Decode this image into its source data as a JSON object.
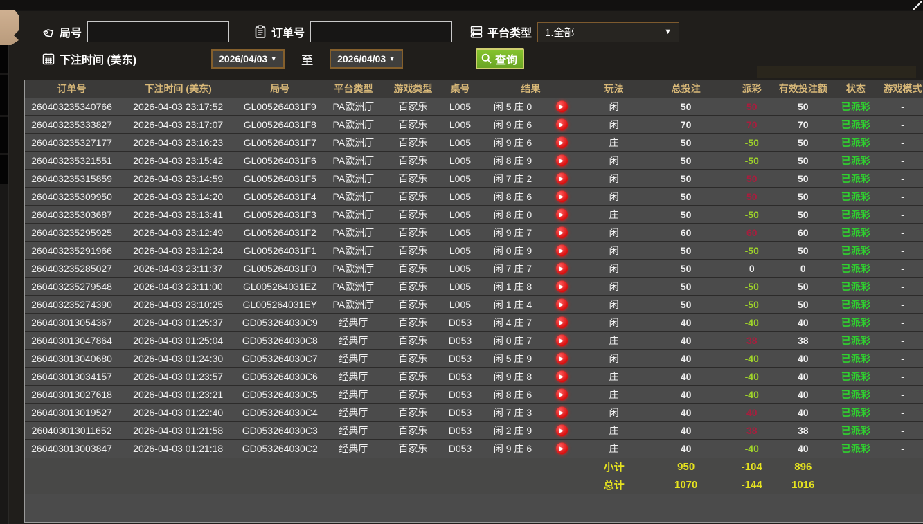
{
  "filters": {
    "round_label": "局号",
    "order_label": "订单号",
    "platform_label": "平台类型",
    "platform_value": "1.全部",
    "bet_time_label": "下注时间 (美东)",
    "date_from": "2026/04/03",
    "date_to": "2026/04/03",
    "to_label": "至",
    "query_label": "查询"
  },
  "table": {
    "headers": [
      "订单号",
      "下注时间 (美东)",
      "局号",
      "平台类型",
      "游戏类型",
      "桌号",
      "结果",
      "玩法",
      "总投注",
      "派彩",
      "有效投注额",
      "状态",
      "游戏模式"
    ],
    "rows": [
      {
        "order": "260403235340766",
        "time": "2026-04-03 23:17:52",
        "round": "GL005264031F9",
        "platform": "PA欧洲厅",
        "game": "百家乐",
        "table_no": "L005",
        "result": "闲 5 庄 0",
        "play": "闲",
        "bet": "50",
        "payout": "50",
        "payout_type": "win",
        "valid": "50",
        "status": "已派彩",
        "mode": "-"
      },
      {
        "order": "260403235333827",
        "time": "2026-04-03 23:17:07",
        "round": "GL005264031F8",
        "platform": "PA欧洲厅",
        "game": "百家乐",
        "table_no": "L005",
        "result": "闲 9 庄 6",
        "play": "闲",
        "bet": "70",
        "payout": "70",
        "payout_type": "win",
        "valid": "70",
        "status": "已派彩",
        "mode": "-"
      },
      {
        "order": "260403235327177",
        "time": "2026-04-03 23:16:23",
        "round": "GL005264031F7",
        "platform": "PA欧洲厅",
        "game": "百家乐",
        "table_no": "L005",
        "result": "闲 9 庄 6",
        "play": "庄",
        "bet": "50",
        "payout": "-50",
        "payout_type": "loss",
        "valid": "50",
        "status": "已派彩",
        "mode": "-"
      },
      {
        "order": "260403235321551",
        "time": "2026-04-03 23:15:42",
        "round": "GL005264031F6",
        "platform": "PA欧洲厅",
        "game": "百家乐",
        "table_no": "L005",
        "result": "闲 8 庄 9",
        "play": "闲",
        "bet": "50",
        "payout": "-50",
        "payout_type": "loss",
        "valid": "50",
        "status": "已派彩",
        "mode": "-"
      },
      {
        "order": "260403235315859",
        "time": "2026-04-03 23:14:59",
        "round": "GL005264031F5",
        "platform": "PA欧洲厅",
        "game": "百家乐",
        "table_no": "L005",
        "result": "闲 7 庄 2",
        "play": "闲",
        "bet": "50",
        "payout": "50",
        "payout_type": "win",
        "valid": "50",
        "status": "已派彩",
        "mode": "-"
      },
      {
        "order": "260403235309950",
        "time": "2026-04-03 23:14:20",
        "round": "GL005264031F4",
        "platform": "PA欧洲厅",
        "game": "百家乐",
        "table_no": "L005",
        "result": "闲 8 庄 6",
        "play": "闲",
        "bet": "50",
        "payout": "50",
        "payout_type": "win",
        "valid": "50",
        "status": "已派彩",
        "mode": "-"
      },
      {
        "order": "260403235303687",
        "time": "2026-04-03 23:13:41",
        "round": "GL005264031F3",
        "platform": "PA欧洲厅",
        "game": "百家乐",
        "table_no": "L005",
        "result": "闲 8 庄 0",
        "play": "庄",
        "bet": "50",
        "payout": "-50",
        "payout_type": "loss",
        "valid": "50",
        "status": "已派彩",
        "mode": "-"
      },
      {
        "order": "260403235295925",
        "time": "2026-04-03 23:12:49",
        "round": "GL005264031F2",
        "platform": "PA欧洲厅",
        "game": "百家乐",
        "table_no": "L005",
        "result": "闲 9 庄 7",
        "play": "闲",
        "bet": "60",
        "payout": "60",
        "payout_type": "win",
        "valid": "60",
        "status": "已派彩",
        "mode": "-"
      },
      {
        "order": "260403235291966",
        "time": "2026-04-03 23:12:24",
        "round": "GL005264031F1",
        "platform": "PA欧洲厅",
        "game": "百家乐",
        "table_no": "L005",
        "result": "闲 0 庄 9",
        "play": "闲",
        "bet": "50",
        "payout": "-50",
        "payout_type": "loss",
        "valid": "50",
        "status": "已派彩",
        "mode": "-"
      },
      {
        "order": "260403235285027",
        "time": "2026-04-03 23:11:37",
        "round": "GL005264031F0",
        "platform": "PA欧洲厅",
        "game": "百家乐",
        "table_no": "L005",
        "result": "闲 7 庄 7",
        "play": "闲",
        "bet": "50",
        "payout": "0",
        "payout_type": "zero",
        "valid": "0",
        "status": "已派彩",
        "mode": "-"
      },
      {
        "order": "260403235279548",
        "time": "2026-04-03 23:11:00",
        "round": "GL005264031EZ",
        "platform": "PA欧洲厅",
        "game": "百家乐",
        "table_no": "L005",
        "result": "闲 1 庄 8",
        "play": "闲",
        "bet": "50",
        "payout": "-50",
        "payout_type": "loss",
        "valid": "50",
        "status": "已派彩",
        "mode": "-"
      },
      {
        "order": "260403235274390",
        "time": "2026-04-03 23:10:25",
        "round": "GL005264031EY",
        "platform": "PA欧洲厅",
        "game": "百家乐",
        "table_no": "L005",
        "result": "闲 1 庄 4",
        "play": "闲",
        "bet": "50",
        "payout": "-50",
        "payout_type": "loss",
        "valid": "50",
        "status": "已派彩",
        "mode": "-"
      },
      {
        "order": "260403013054367",
        "time": "2026-04-03 01:25:37",
        "round": "GD053264030C9",
        "platform": "经典厅",
        "game": "百家乐",
        "table_no": "D053",
        "result": "闲 4 庄 7",
        "play": "闲",
        "bet": "40",
        "payout": "-40",
        "payout_type": "loss",
        "valid": "40",
        "status": "已派彩",
        "mode": "-"
      },
      {
        "order": "260403013047864",
        "time": "2026-04-03 01:25:04",
        "round": "GD053264030C8",
        "platform": "经典厅",
        "game": "百家乐",
        "table_no": "D053",
        "result": "闲 0 庄 7",
        "play": "庄",
        "bet": "40",
        "payout": "38",
        "payout_type": "win",
        "valid": "38",
        "status": "已派彩",
        "mode": "-"
      },
      {
        "order": "260403013040680",
        "time": "2026-04-03 01:24:30",
        "round": "GD053264030C7",
        "platform": "经典厅",
        "game": "百家乐",
        "table_no": "D053",
        "result": "闲 5 庄 9",
        "play": "闲",
        "bet": "40",
        "payout": "-40",
        "payout_type": "loss",
        "valid": "40",
        "status": "已派彩",
        "mode": "-"
      },
      {
        "order": "260403013034157",
        "time": "2026-04-03 01:23:57",
        "round": "GD053264030C6",
        "platform": "经典厅",
        "game": "百家乐",
        "table_no": "D053",
        "result": "闲 9 庄 8",
        "play": "庄",
        "bet": "40",
        "payout": "-40",
        "payout_type": "loss",
        "valid": "40",
        "status": "已派彩",
        "mode": "-"
      },
      {
        "order": "260403013027618",
        "time": "2026-04-03 01:23:21",
        "round": "GD053264030C5",
        "platform": "经典厅",
        "game": "百家乐",
        "table_no": "D053",
        "result": "闲 8 庄 6",
        "play": "庄",
        "bet": "40",
        "payout": "-40",
        "payout_type": "loss",
        "valid": "40",
        "status": "已派彩",
        "mode": "-"
      },
      {
        "order": "260403013019527",
        "time": "2026-04-03 01:22:40",
        "round": "GD053264030C4",
        "platform": "经典厅",
        "game": "百家乐",
        "table_no": "D053",
        "result": "闲 7 庄 3",
        "play": "闲",
        "bet": "40",
        "payout": "40",
        "payout_type": "win",
        "valid": "40",
        "status": "已派彩",
        "mode": "-"
      },
      {
        "order": "260403013011652",
        "time": "2026-04-03 01:21:58",
        "round": "GD053264030C3",
        "platform": "经典厅",
        "game": "百家乐",
        "table_no": "D053",
        "result": "闲 2 庄 9",
        "play": "庄",
        "bet": "40",
        "payout": "38",
        "payout_type": "win",
        "valid": "38",
        "status": "已派彩",
        "mode": "-"
      },
      {
        "order": "260403013003847",
        "time": "2026-04-03 01:21:18",
        "round": "GD053264030C2",
        "platform": "经典厅",
        "game": "百家乐",
        "table_no": "D053",
        "result": "闲 9 庄 6",
        "play": "庄",
        "bet": "40",
        "payout": "-40",
        "payout_type": "loss",
        "valid": "40",
        "status": "已派彩",
        "mode": "-"
      }
    ],
    "subtotal": {
      "label": "小计",
      "bet": "950",
      "payout": "-104",
      "valid": "896"
    },
    "total": {
      "label": "总计",
      "bet": "1070",
      "payout": "-144",
      "valid": "1016"
    }
  },
  "colors": {
    "header_text": "#d8b878",
    "payout_win": "#a81e3e",
    "payout_loss": "#9fd32a",
    "status_paid": "#2ed32e",
    "totals_text": "#e6e31f",
    "query_button": "#76b328",
    "date_border": "#845f2c",
    "row_bg": "#4b4b4b",
    "corner_tab": "#c3a585"
  }
}
